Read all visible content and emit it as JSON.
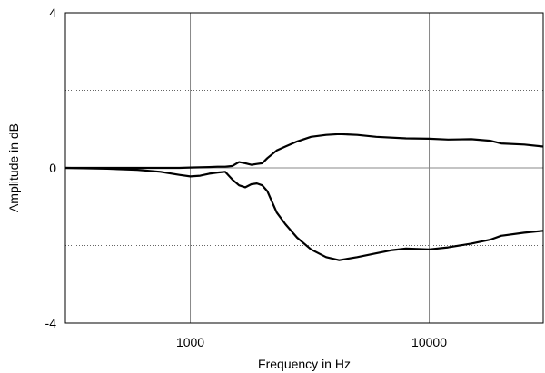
{
  "chart_data": {
    "type": "line",
    "title": "",
    "xlabel": "Frequency in Hz",
    "ylabel": "Amplitude in dB",
    "x_scale": "log",
    "xlim": [
      300,
      30000
    ],
    "ylim": [
      -4,
      4
    ],
    "x_ticks": [
      {
        "value": 1000,
        "label": "1000"
      },
      {
        "value": 10000,
        "label": "10000"
      }
    ],
    "y_ticks": [
      {
        "value": 4,
        "label": "4"
      },
      {
        "value": 0,
        "label": "0"
      },
      {
        "value": -4,
        "label": "-4"
      }
    ],
    "y_gridlines_dotted": [
      2,
      -2
    ],
    "y_gridlines_solid": [
      0
    ],
    "x_gridlines_solid": [
      1000,
      10000
    ],
    "line_color": "#000000",
    "series": [
      {
        "x": [
          300,
          500,
          700,
          900,
          1000,
          1200,
          1300,
          1400,
          1500,
          1600,
          1700,
          1800,
          1900,
          2000,
          2100,
          2300,
          2500,
          2800,
          3200,
          3700,
          4200,
          5000,
          6000,
          8000,
          10000,
          12000,
          15000,
          18000,
          20000,
          25000,
          30000
        ],
        "y": [
          0.0,
          0.0,
          0.0,
          0.0,
          0.01,
          0.02,
          0.03,
          0.03,
          0.05,
          0.15,
          0.12,
          0.08,
          0.1,
          0.12,
          0.25,
          0.45,
          0.55,
          0.68,
          0.8,
          0.85,
          0.87,
          0.85,
          0.8,
          0.76,
          0.75,
          0.73,
          0.74,
          0.7,
          0.63,
          0.6,
          0.55
        ]
      },
      {
        "x": [
          300,
          450,
          600,
          750,
          900,
          1000,
          1100,
          1200,
          1300,
          1400,
          1500,
          1600,
          1700,
          1800,
          1900,
          2000,
          2100,
          2300,
          2500,
          2800,
          3200,
          3700,
          4200,
          5000,
          6000,
          7000,
          8000,
          10000,
          12000,
          15000,
          18000,
          20000,
          25000,
          30000
        ],
        "y": [
          0.0,
          -0.02,
          -0.05,
          -0.1,
          -0.18,
          -0.22,
          -0.2,
          -0.15,
          -0.12,
          -0.1,
          -0.3,
          -0.45,
          -0.5,
          -0.42,
          -0.4,
          -0.45,
          -0.6,
          -1.15,
          -1.45,
          -1.8,
          -2.1,
          -2.3,
          -2.38,
          -2.3,
          -2.2,
          -2.12,
          -2.08,
          -2.1,
          -2.05,
          -1.95,
          -1.85,
          -1.75,
          -1.67,
          -1.62
        ]
      }
    ]
  }
}
